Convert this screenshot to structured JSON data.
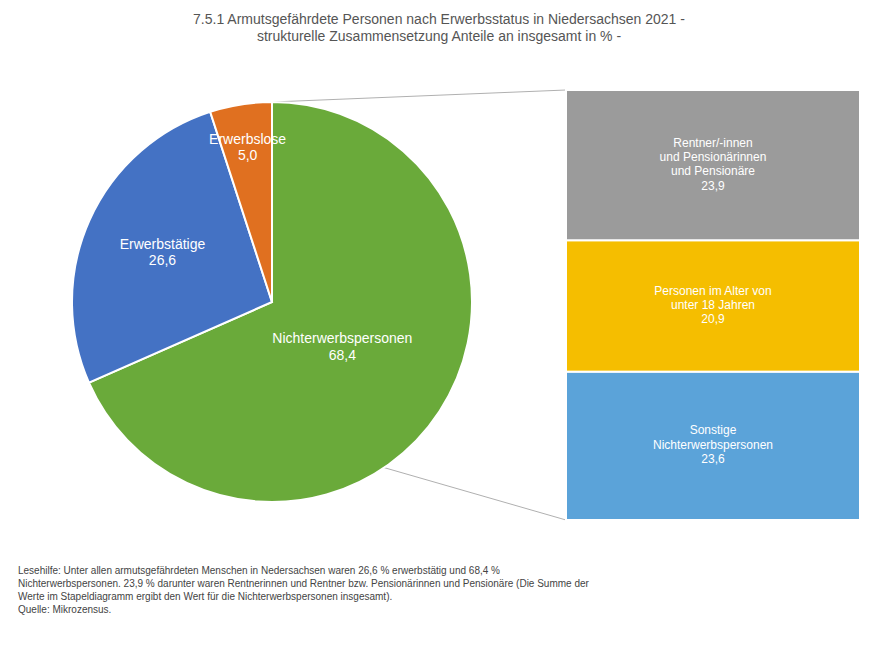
{
  "chart_data": [
    {
      "type": "pie",
      "title": "7.5.1 Armutsgefährdete Personen nach Erwerbsstatus in Niedersachsen 2021 -\nstrukturelle Zusammensetzung Anteile an insgesamt in % -",
      "categories": [
        "Nichterwerbspersonen",
        "Erwerbstätige",
        "Erwerbslose"
      ],
      "values": [
        68.4,
        26.6,
        5.0
      ],
      "value_labels": [
        "68,4",
        "26,6",
        "5,0"
      ],
      "colors": [
        "#6aaa3a",
        "#4472c4",
        "#e07020"
      ],
      "data_labels": true,
      "annotations": [
        "Lesehilfe: Unter allen armutsgefährdeten Menschen in Nedersachsen waren 26,6 % erwerbstätig und 68,4 %",
        "Nichterwerbspersonen. 23,9 % darunter waren Rentnerinnen und Rentner bzw. Pensionärinnen und Pensionäre (Die Summe der",
        "Werte im Stapeldiagramm ergibt den Wert für die Nichterwerbspersonen insgesamt).",
        "Quelle: Mikrozensus."
      ]
    },
    {
      "type": "bar",
      "stacked": true,
      "categories": [
        null
      ],
      "series": [
        {
          "name": "Sonstige\nNichterwerbspersonen",
          "color": "#5ba3d9",
          "values": [
            23.6
          ],
          "value_labels": [
            "23,6"
          ]
        },
        {
          "name": "Personen im Alter von\nunter 18 Jahren",
          "color": "#f5be00",
          "values": [
            20.9
          ],
          "value_labels": [
            "20,9"
          ]
        },
        {
          "name": "Rentner/-innen\nund Pensionärinnen\nund Pensionäre",
          "color": "#9b9b9b",
          "values": [
            23.9
          ],
          "value_labels": [
            "23,9"
          ]
        }
      ],
      "ylim": [
        0,
        68.4
      ],
      "data_labels": true,
      "tick_labels": false
    }
  ]
}
